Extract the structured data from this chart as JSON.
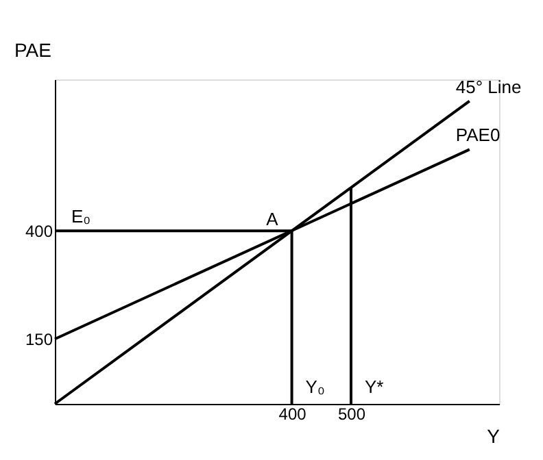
{
  "chart_data": {
    "type": "line",
    "xlabel": "Y",
    "ylabel": "PAE",
    "xlim": [
      0,
      750
    ],
    "ylim": [
      0,
      750
    ],
    "xticks": [
      400,
      500
    ],
    "yticks": [
      150,
      400
    ],
    "grid": false,
    "marker": "none",
    "line_style": "solid",
    "series": [
      {
        "name": "45° Line",
        "color": "#000000",
        "x": [
          0,
          700
        ],
        "values": [
          0,
          700
        ]
      },
      {
        "name": "PAE0",
        "color": "#000000",
        "x": [
          0,
          700
        ],
        "values": [
          150,
          588
        ]
      },
      {
        "color": "#000000",
        "x": [
          0,
          400
        ],
        "values": [
          400,
          400
        ]
      },
      {
        "color": "#000000",
        "x": [
          400,
          400
        ],
        "values": [
          0,
          400
        ]
      },
      {
        "color": "#000000",
        "x": [
          500,
          500
        ],
        "values": [
          0,
          500
        ]
      }
    ],
    "annotations": [
      {
        "text": "A",
        "x": 400,
        "y": 400
      },
      {
        "text": "E₀",
        "x": 0,
        "y": 400
      },
      {
        "text": "Y₀",
        "x": 400,
        "y": 0
      },
      {
        "text": "Y*",
        "x": 500,
        "y": 0
      }
    ]
  }
}
